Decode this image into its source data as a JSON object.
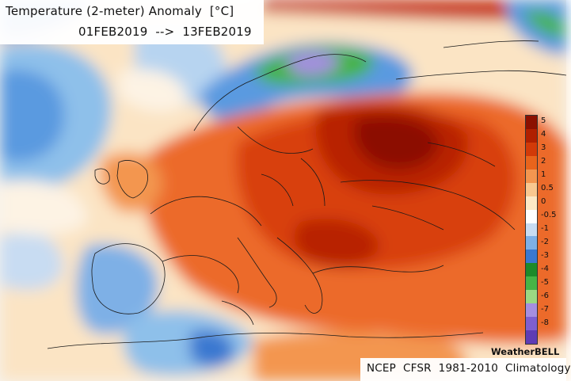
{
  "map": {
    "title": "Temperature (2-meter) Anomaly  [°C]",
    "date_range": "01FEB2019  -->  13FEB2019",
    "credit": "WeatherBELL",
    "climatology": "NCEP  CFSR  1981-2010  Climatology",
    "units": "°C",
    "legend": {
      "ticks": [
        "5",
        "4",
        "3",
        "2",
        "1",
        "0.5",
        "0",
        "-0.5",
        "-1",
        "-2",
        "-3",
        "-4",
        "-5",
        "-6",
        "-7",
        "-8"
      ],
      "colors": [
        "#8c1000",
        "#b02000",
        "#d23a08",
        "#e8641c",
        "#f39650",
        "#f9c890",
        "#fde9c6",
        "#ffffff",
        "#c8dcf2",
        "#7eb0e6",
        "#3a78d0",
        "#1d8a2a",
        "#46b446",
        "#9bd883",
        "#a58ee0",
        "#7e5fcf",
        "#5e3cb5"
      ]
    },
    "colors": {
      "strong_warm": "#8c1000",
      "warm": "#e8641c",
      "neutral": "#fdf3e4",
      "cool": "#3a78d0",
      "cold_green": "#46b446",
      "cold_purple": "#7e5fcf"
    }
  }
}
